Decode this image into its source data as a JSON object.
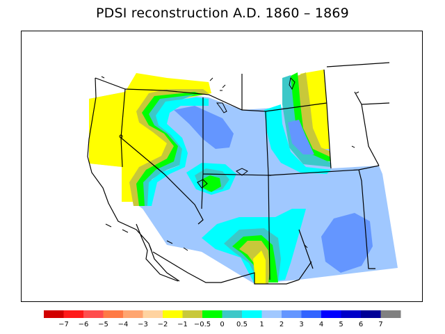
{
  "title": "PDSI reconstruction A.D. 1860 – 1869",
  "colorbar": {
    "colors": [
      "#d10000",
      "#ff1a1a",
      "#ff4d4d",
      "#ff7a45",
      "#ffa570",
      "#ffd3a0",
      "#ffff00",
      "#c8c83a",
      "#00ff00",
      "#3cc8c8",
      "#00ffff",
      "#a0c8ff",
      "#6496ff",
      "#3264ff",
      "#0000ff",
      "#0000c8",
      "#000096",
      "#808080"
    ],
    "labels": [
      "−7",
      "−6",
      "−5",
      "−4",
      "−3",
      "−2",
      "−1",
      "−0.5",
      "0",
      "0.5",
      "1",
      "2",
      "3",
      "4",
      "5",
      "6",
      "7"
    ]
  },
  "legend_colors": {
    "yellow": "#ffff00",
    "olive": "#c8c83a",
    "green": "#00ff00",
    "teal": "#3cc8c8",
    "cyan": "#00ffff",
    "light_blue": "#a0c8ff",
    "mid_blue": "#6496ff"
  }
}
